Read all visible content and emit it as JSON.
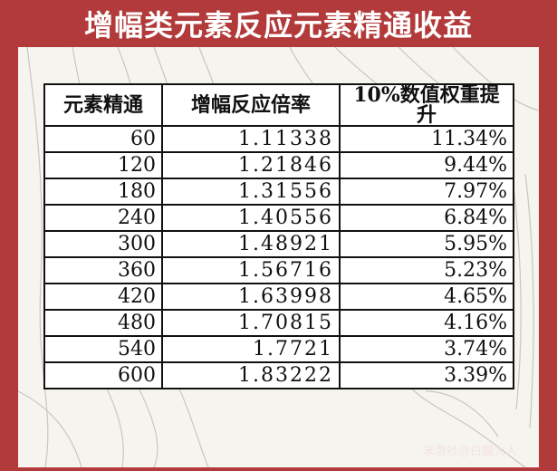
{
  "title": "增幅类元素反应元素精通收益",
  "table": {
    "headers": [
      "元素精通",
      "增幅反应倍率",
      "10%数值权重提升"
    ],
    "rows": [
      [
        "60",
        "1.11338",
        "11.34%"
      ],
      [
        "120",
        "1.21846",
        "9.44%"
      ],
      [
        "180",
        "1.31556",
        "7.97%"
      ],
      [
        "240",
        "1.40556",
        "6.84%"
      ],
      [
        "300",
        "1.48921",
        "5.95%"
      ],
      [
        "360",
        "1.56716",
        "5.23%"
      ],
      [
        "420",
        "1.63998",
        "4.65%"
      ],
      [
        "480",
        "1.70815",
        "4.16%"
      ],
      [
        "540",
        "1.7721",
        "3.74%"
      ],
      [
        "600",
        "1.83222",
        "3.39%"
      ]
    ]
  },
  "watermark": "米游社@白猫大人",
  "colors": {
    "frame": "#b23a3a",
    "highlight": "#e02020"
  }
}
